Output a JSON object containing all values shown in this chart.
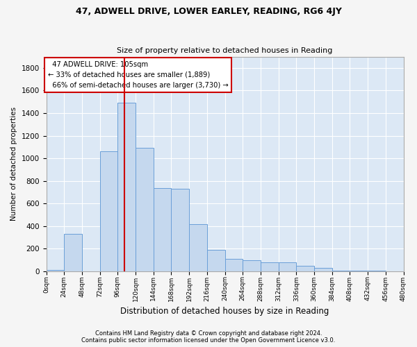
{
  "title1": "47, ADWELL DRIVE, LOWER EARLEY, READING, RG6 4JY",
  "title2": "Size of property relative to detached houses in Reading",
  "xlabel": "Distribution of detached houses by size in Reading",
  "ylabel": "Number of detached properties",
  "bar_color": "#c5d8ee",
  "bar_edge_color": "#6a9fd8",
  "background_color": "#dce8f5",
  "plot_bg_color": "#dce8f5",
  "grid_color": "#ffffff",
  "vline_x": 105,
  "vline_color": "#cc0000",
  "bin_edges": [
    0,
    24,
    48,
    72,
    96,
    120,
    144,
    168,
    192,
    216,
    240,
    264,
    288,
    312,
    336,
    360,
    384,
    408,
    432,
    456,
    480
  ],
  "bar_heights": [
    10,
    330,
    0,
    1060,
    1490,
    1090,
    740,
    730,
    420,
    190,
    110,
    100,
    80,
    80,
    50,
    30,
    5,
    5,
    5,
    0
  ],
  "annotation_text": "  47 ADWELL DRIVE: 105sqm\n← 33% of detached houses are smaller (1,889)\n  66% of semi-detached houses are larger (3,730) →",
  "annotation_box_color": "#ffffff",
  "annotation_box_edge": "#cc0000",
  "ylim": [
    0,
    1900
  ],
  "yticks": [
    0,
    200,
    400,
    600,
    800,
    1000,
    1200,
    1400,
    1600,
    1800
  ],
  "xlim": [
    0,
    480
  ],
  "footer1": "Contains HM Land Registry data © Crown copyright and database right 2024.",
  "footer2": "Contains public sector information licensed under the Open Government Licence v3.0.",
  "fig_width": 6.0,
  "fig_height": 5.0,
  "fig_dpi": 100
}
